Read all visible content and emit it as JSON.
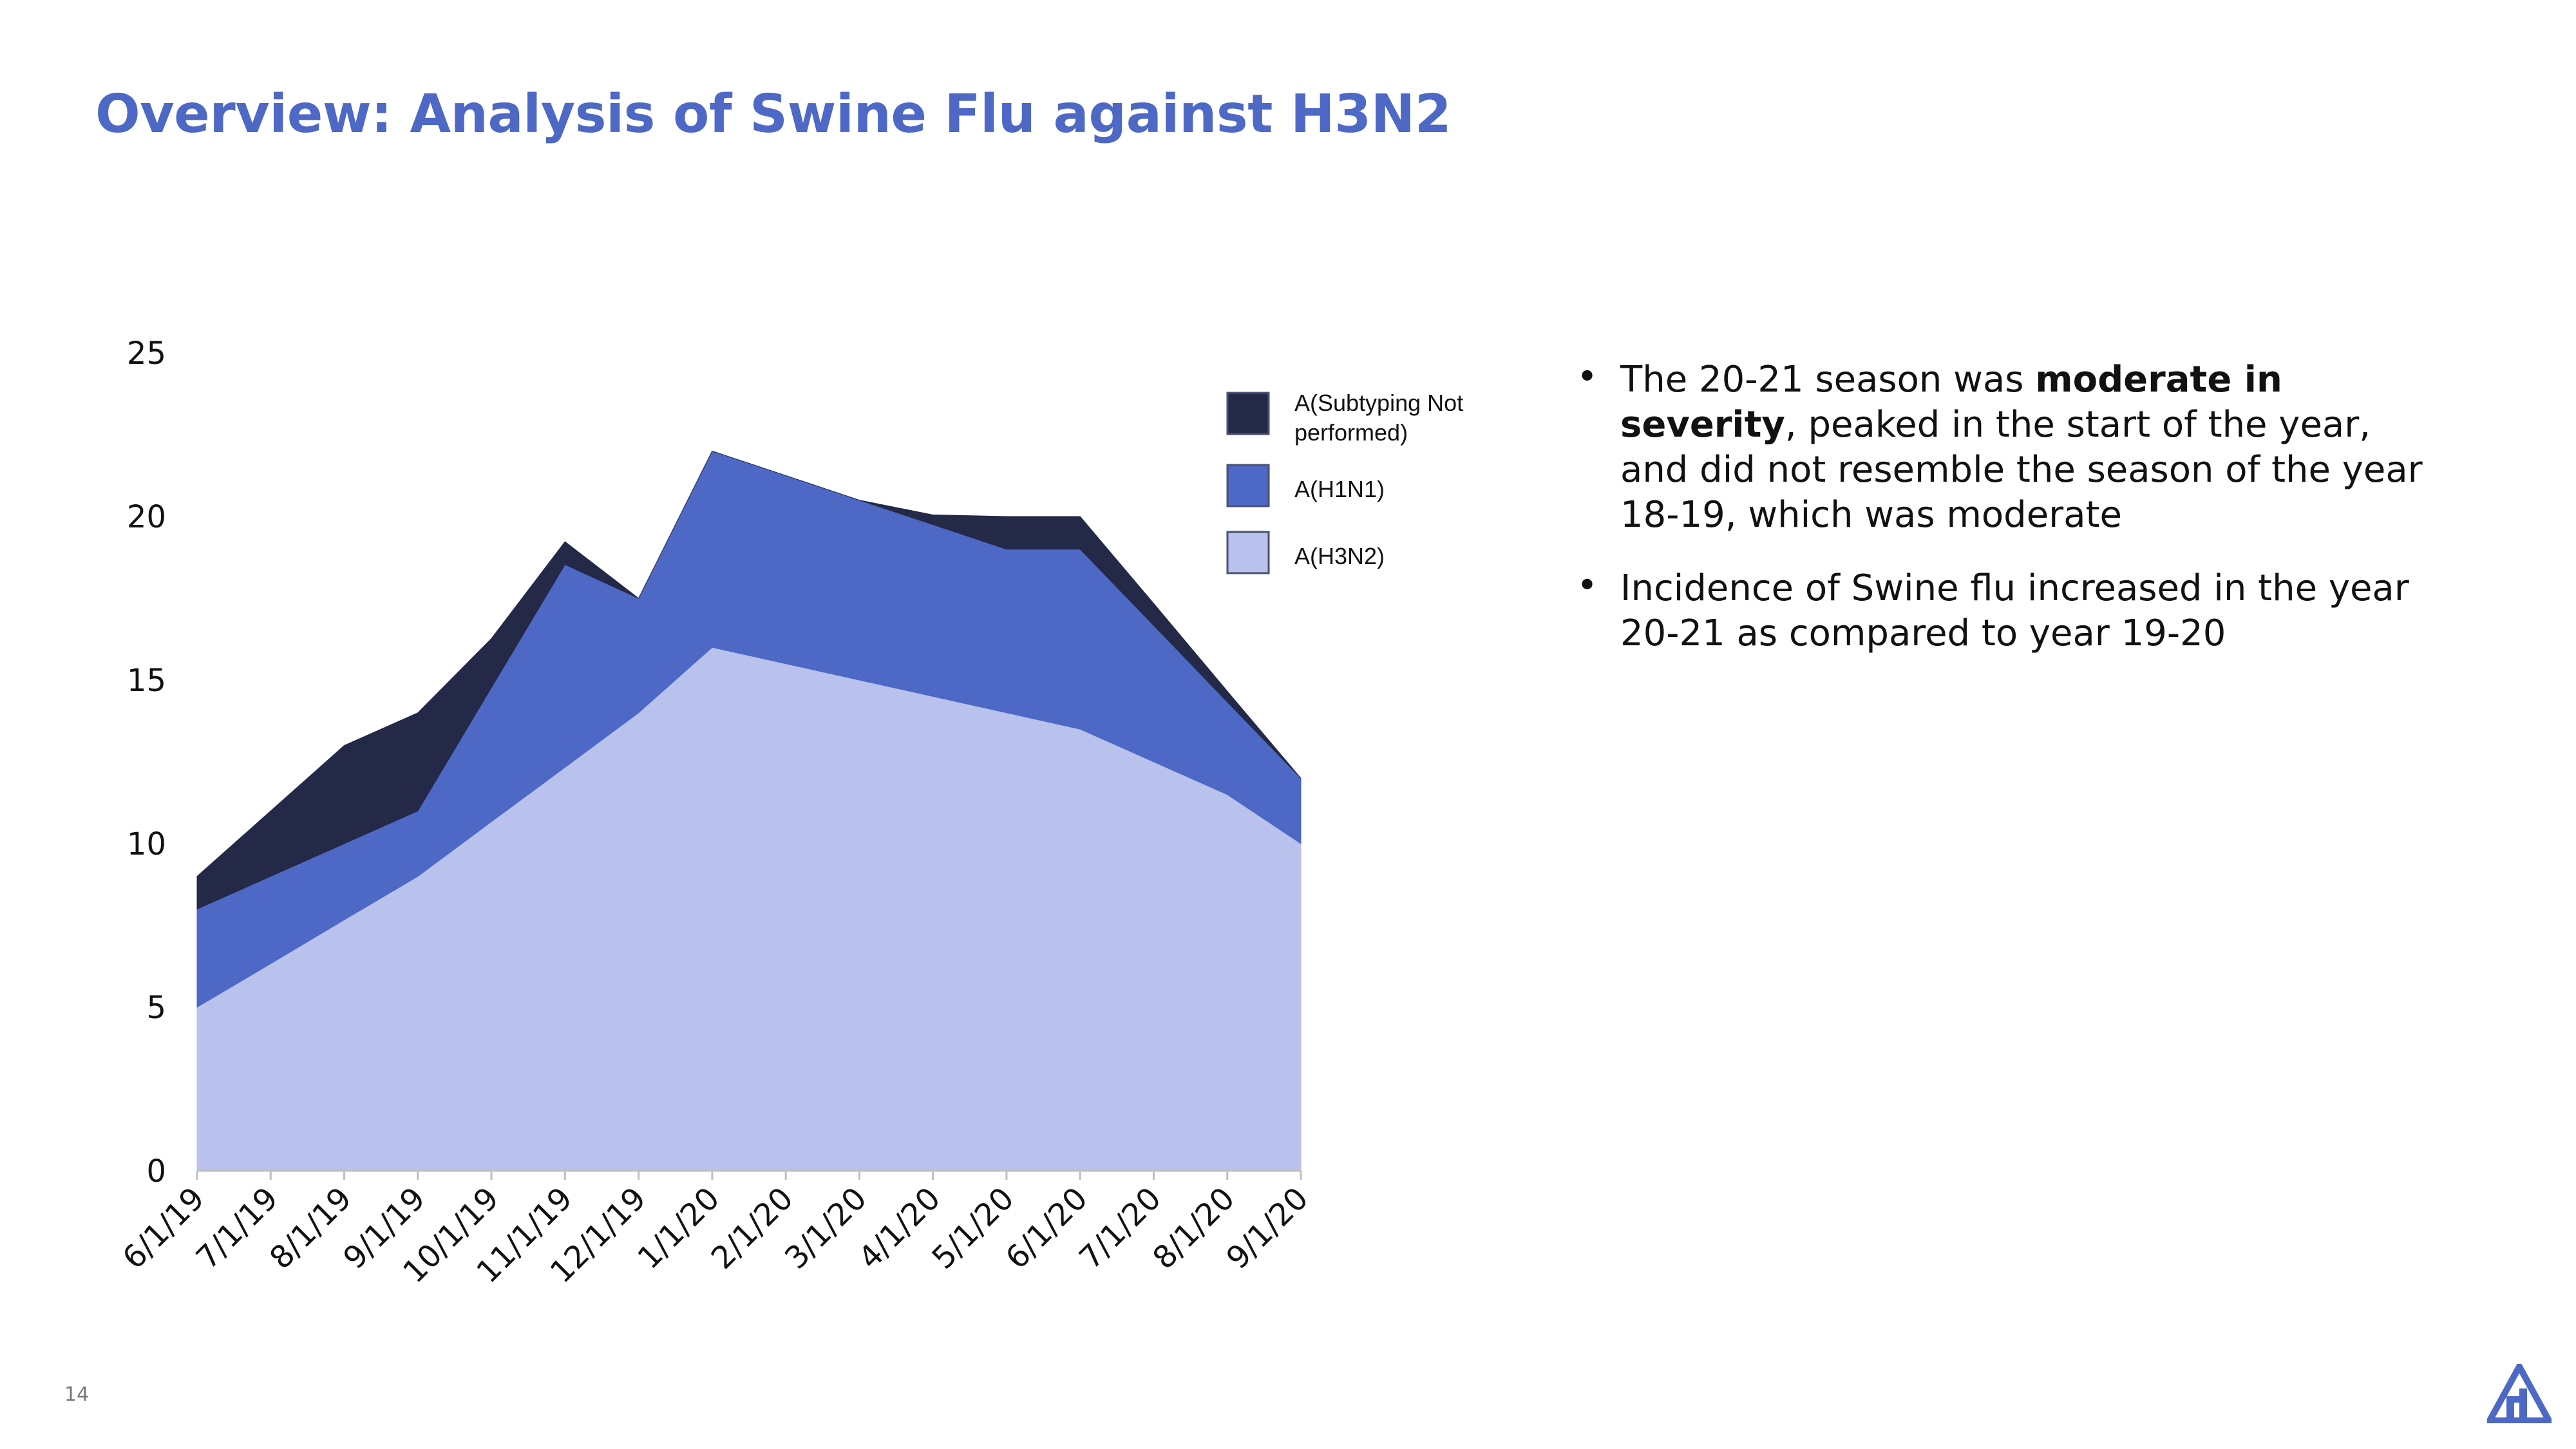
{
  "title": "Overview: Analysis of Swine Flu against H3N2",
  "slide_number": "14",
  "bullets": [
    {
      "pre": "The 20-21 season was ",
      "bold": "moderate in severity",
      "post": ", peaked in the start of the year, and did not resemble the season of the year 18-19, which was moderate"
    },
    {
      "pre": "Incidence of Swine flu increased in the year 20-21 as compared to year 19-20",
      "bold": "",
      "post": ""
    }
  ],
  "colors": {
    "title": "#4d68c5",
    "not_performed": "#232947",
    "h1n1": "#4d68c5",
    "h3n2": "#b9c2ec",
    "logo": "#4d68c5"
  },
  "logo_icon": "triangle-logo-icon",
  "chart_data": {
    "type": "area",
    "stacked": true,
    "x": [
      "6/1/19",
      "7/1/19",
      "8/1/19",
      "9/1/19",
      "10/1/19",
      "11/1/19",
      "12/1/19",
      "1/1/20",
      "2/1/20",
      "3/1/20",
      "4/1/20",
      "5/1/20",
      "6/1/20",
      "7/1/20",
      "8/1/20",
      "9/1/20"
    ],
    "series": [
      {
        "name": "A(H3N2)",
        "values": [
          5,
          6.33,
          7.67,
          9,
          10.67,
          12.33,
          14,
          16,
          15.5,
          15,
          14.5,
          14,
          13.5,
          12.5,
          11.5,
          10
        ],
        "color": "#b9c2ec"
      },
      {
        "name": "A(H1N1)",
        "values": [
          3,
          2.67,
          2.33,
          2,
          4.1,
          6.2,
          3.5,
          6,
          5.75,
          5.5,
          5.25,
          5,
          5.5,
          4.17,
          2.83,
          2
        ],
        "color": "#4d68c5"
      },
      {
        "name": "A(Subtyping Not performed)",
        "values": [
          1,
          2,
          3,
          3,
          1.5,
          0.7,
          0,
          0,
          0,
          0,
          0.3,
          1,
          1,
          0.67,
          0.33,
          0
        ],
        "color": "#232947"
      }
    ],
    "ylim": [
      0,
      25
    ],
    "yticks": [
      0,
      5,
      10,
      15,
      20,
      25
    ],
    "legend": {
      "position": "top-right",
      "entries": [
        "A(Subtyping Not performed)",
        "A(H1N1)",
        "A(H3N2)"
      ]
    },
    "grid": false
  }
}
